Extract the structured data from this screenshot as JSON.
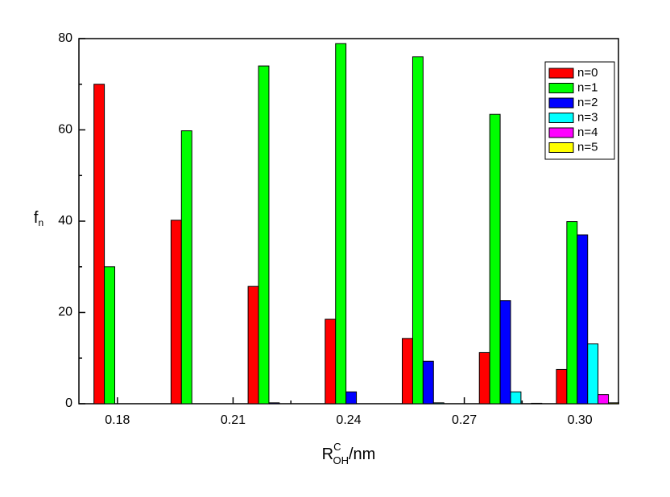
{
  "chart_data": {
    "type": "bar",
    "xlabel": {
      "base": "R",
      "sup": "C",
      "sub": "OH",
      "unit": "/nm"
    },
    "ylabel": {
      "base": "f",
      "sub": "n"
    },
    "x": [
      0.182,
      0.202,
      0.222,
      0.242,
      0.262,
      0.282,
      0.302
    ],
    "series": [
      {
        "name": "n=0",
        "color": "#ff0000",
        "values": [
          70,
          40.2,
          25.7,
          18.5,
          14.3,
          11.2,
          7.5
        ]
      },
      {
        "name": "n=1",
        "color": "#00ff00",
        "values": [
          30,
          59.8,
          74,
          78.9,
          76,
          63.4,
          39.9
        ]
      },
      {
        "name": "n=2",
        "color": "#0000ff",
        "values": [
          0,
          0,
          0.2,
          2.6,
          9.3,
          22.6,
          37
        ]
      },
      {
        "name": "n=3",
        "color": "#00ffff",
        "values": [
          0,
          0,
          0,
          0,
          0.2,
          2.6,
          13.1
        ]
      },
      {
        "name": "n=4",
        "color": "#ff00ff",
        "values": [
          0,
          0,
          0,
          0,
          0,
          0,
          2
        ]
      },
      {
        "name": "n=5",
        "color": "#ffff00",
        "values": [
          0,
          0,
          0,
          0,
          0,
          0.1,
          0.2
        ]
      }
    ],
    "xlim": [
      0.17,
      0.31
    ],
    "xticks": [
      0.18,
      0.21,
      0.24,
      0.27,
      {
        "value": 0.3,
        "label": "0.30"
      }
    ],
    "xminor_ticks": [
      0.195,
      0.225,
      0.255,
      0.285
    ],
    "ylim": [
      0,
      80
    ],
    "yticks": [
      0,
      20,
      40,
      60,
      80
    ],
    "yminor_ticks": [
      10,
      30,
      50,
      70
    ],
    "legend": "upper right"
  }
}
